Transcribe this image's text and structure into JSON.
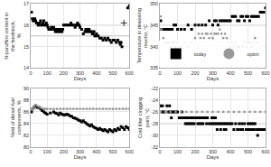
{
  "chart_data": [
    {
      "type": "scatter",
      "xlabel": "Days",
      "ylabel": "N-paraffins content in the feedstock,\n%",
      "xlim": [
        0,
        600
      ],
      "ylim": [
        14,
        17
      ],
      "xticks": [
        0,
        100,
        200,
        300,
        400,
        500,
        600
      ],
      "yticks": [
        14,
        15,
        16,
        17
      ],
      "grid": true,
      "series": [
        {
          "color": "#000000",
          "marker": "square",
          "x": [
            5,
            10,
            15,
            20,
            25,
            30,
            35,
            40,
            45,
            50,
            55,
            60,
            65,
            70,
            75,
            80,
            85,
            90,
            95,
            100,
            105,
            110,
            120,
            125,
            130,
            140,
            145,
            150,
            155,
            160,
            165,
            170,
            175,
            180,
            185,
            190,
            195,
            200,
            210,
            220,
            230,
            240,
            245,
            250,
            260,
            270,
            275,
            280,
            285,
            290,
            295,
            300,
            310,
            320,
            330,
            335,
            340,
            345,
            350,
            355,
            360,
            370,
            375,
            380,
            385,
            390,
            395,
            400,
            410,
            420,
            430,
            440,
            450,
            460,
            470,
            480,
            490,
            500,
            510,
            520,
            530,
            540,
            545,
            550,
            555,
            590,
            600
          ],
          "values": [
            16.6,
            16.3,
            16.2,
            16.2,
            16.3,
            16.2,
            16.1,
            16.1,
            16.0,
            16.0,
            16.1,
            16.2,
            16.0,
            16.0,
            16.1,
            16.2,
            16.0,
            16.0,
            16.1,
            16.0,
            15.9,
            15.8,
            15.8,
            15.9,
            15.8,
            15.9,
            15.8,
            15.7,
            15.8,
            15.7,
            15.8,
            15.7,
            15.8,
            15.7,
            15.8,
            15.7,
            15.8,
            16.0,
            16.0,
            16.0,
            16.0,
            16.0,
            16.1,
            16.0,
            16.0,
            15.9,
            16.0,
            16.0,
            16.1,
            16.0,
            16.0,
            15.9,
            15.8,
            15.6,
            15.7,
            15.8,
            15.7,
            15.8,
            15.7,
            15.8,
            15.7,
            15.7,
            15.6,
            15.6,
            15.7,
            15.5,
            15.5,
            15.6,
            15.5,
            15.4,
            15.4,
            15.3,
            15.4,
            15.3,
            15.4,
            15.3,
            15.2,
            15.3,
            15.3,
            15.2,
            15.3,
            15.2,
            15.1,
            15.2,
            15.0,
            16.8,
            16.9
          ]
        },
        {
          "color": "#000000",
          "marker": "plus",
          "x": [
            567
          ],
          "values": [
            16.1
          ]
        }
      ],
      "hlines": [
        {
          "y": 16.0,
          "color": "#aaaaaa"
        },
        {
          "y": 15.5,
          "color": "#aaaaaa"
        }
      ]
    },
    {
      "type": "scatter",
      "xlabel": "Days",
      "ylabel": "Temperature in dewaxing reactor, °C",
      "xlim": [
        0,
        600
      ],
      "ylim": [
        335,
        350
      ],
      "xticks": [
        0,
        100,
        200,
        300,
        400,
        500,
        600
      ],
      "yticks": [
        335,
        340,
        345,
        350
      ],
      "grid": true,
      "legend": "lower right",
      "series": [
        {
          "name": "today",
          "color": "#000000",
          "marker": "square",
          "x": [
            5,
            10,
            20,
            30,
            40,
            50,
            60,
            70,
            80,
            90,
            100,
            120,
            140,
            160,
            180,
            200,
            220,
            240,
            260,
            280,
            300,
            310,
            320,
            330,
            340,
            350,
            360,
            370,
            380,
            390,
            400,
            410,
            420,
            430,
            440,
            450,
            460,
            470,
            480,
            490,
            500,
            510,
            520,
            530,
            540,
            550,
            560,
            570,
            580,
            590,
            600
          ],
          "values": [
            346,
            344,
            344,
            344,
            344,
            344,
            344,
            344,
            345,
            345,
            344,
            344,
            344,
            345,
            344,
            345,
            345,
            345,
            345,
            346,
            345,
            346,
            346,
            345,
            346,
            346,
            346,
            346,
            346,
            346,
            346,
            347,
            347,
            347,
            346,
            346,
            347,
            347,
            346,
            347,
            347,
            346,
            347,
            347,
            347,
            347,
            347,
            348,
            348,
            348,
            349
          ]
        },
        {
          "name": "optim",
          "color": "#999999",
          "marker": "circle",
          "x": [
            5,
            10,
            20,
            30,
            40,
            50,
            60,
            70,
            80,
            90,
            100,
            120,
            140,
            160,
            180,
            200,
            220,
            230,
            240,
            250,
            260,
            270,
            280,
            290,
            300,
            310,
            320,
            330,
            340,
            350,
            360,
            370,
            380,
            390,
            400,
            410,
            420,
            430,
            440,
            450,
            460,
            470,
            480,
            490,
            500,
            510,
            520,
            530,
            540,
            550
          ],
          "values": [
            347,
            344,
            342,
            341,
            341,
            341,
            340,
            341,
            341,
            340,
            341,
            340,
            341,
            340,
            341,
            342,
            343,
            342,
            343,
            342,
            343,
            343,
            342,
            343,
            342,
            343,
            343,
            343,
            344,
            343,
            342,
            343,
            342,
            341,
            340,
            341,
            340,
            341,
            340,
            340,
            339,
            340,
            341,
            340,
            341,
            341,
            340,
            341,
            342,
            341
          ]
        }
      ],
      "hlines": [
        {
          "y": 345,
          "color": "#aaaaaa"
        }
      ]
    },
    {
      "type": "scatter",
      "xlabel": "Days",
      "ylabel": "Yield of diesel fuel components, %",
      "xlim": [
        0,
        600
      ],
      "ylim": [
        80,
        90
      ],
      "xticks": [
        0,
        100,
        200,
        300,
        400,
        500,
        600
      ],
      "yticks": [
        80,
        82,
        84,
        86,
        88,
        90
      ],
      "grid": true,
      "series": [
        {
          "color": "#000000",
          "marker": "square",
          "x": [
            5,
            10,
            20,
            30,
            40,
            50,
            60,
            70,
            80,
            90,
            100,
            120,
            140,
            150,
            160,
            170,
            180,
            190,
            200,
            210,
            220,
            230,
            240,
            250,
            260,
            270,
            280,
            290,
            300,
            310,
            320,
            330,
            340,
            350,
            360,
            370,
            380,
            390,
            400,
            410,
            420,
            430,
            440,
            450,
            460,
            470,
            480,
            490,
            500,
            510,
            520,
            530,
            540,
            550,
            560,
            570,
            580,
            590,
            600
          ],
          "values": [
            86.0,
            86.5,
            86.8,
            87.0,
            86.8,
            86.8,
            86.5,
            86.2,
            86.0,
            85.8,
            85.6,
            85.8,
            86.0,
            85.8,
            85.7,
            85.5,
            85.8,
            85.6,
            85.5,
            85.5,
            85.6,
            85.5,
            85.3,
            85.2,
            85.0,
            84.9,
            84.8,
            84.6,
            84.5,
            84.3,
            84.5,
            84.2,
            84.0,
            83.8,
            83.6,
            83.8,
            83.5,
            83.3,
            83.2,
            83.0,
            83.2,
            83.0,
            82.8,
            83.0,
            82.8,
            82.6,
            83.0,
            82.8,
            82.6,
            83.0,
            82.8,
            83.2,
            83.0,
            83.5,
            83.3,
            83.0,
            83.5,
            83.3,
            83.0
          ]
        },
        {
          "color": "#999999",
          "marker": "circle",
          "x": [
            5,
            10,
            20,
            30,
            40,
            50,
            60,
            70,
            80,
            90,
            100,
            120,
            140,
            160,
            180,
            200,
            220,
            240,
            260,
            280,
            300,
            320,
            340,
            360,
            380,
            400,
            420,
            440,
            460,
            480,
            500,
            520,
            540,
            560,
            580,
            600
          ],
          "values": [
            86.5,
            86.5,
            86.8,
            87.2,
            87.0,
            86.9,
            86.7,
            86.6,
            86.5,
            86.5,
            86.5,
            86.5,
            86.5,
            86.5,
            86.5,
            86.5,
            86.5,
            86.5,
            86.5,
            86.5,
            86.5,
            86.5,
            86.5,
            86.5,
            86.5,
            86.5,
            86.5,
            86.5,
            86.5,
            86.5,
            86.5,
            86.5,
            86.5,
            86.5,
            86.5,
            86.5
          ]
        }
      ],
      "hlines": [
        {
          "y": 86.5,
          "color": "#aaaaaa"
        }
      ]
    },
    {
      "type": "scatter",
      "xlabel": "Days",
      "ylabel": "Cold filter clogging point, °C",
      "xlim": [
        0,
        600
      ],
      "ylim": [
        -32,
        -22
      ],
      "xticks": [
        0,
        100,
        200,
        300,
        400,
        500,
        600
      ],
      "yticks": [
        -32,
        -30,
        -28,
        -26,
        -24,
        -22
      ],
      "grid": true,
      "series": [
        {
          "color": "#000000",
          "marker": "square",
          "x": [
            5,
            10,
            15,
            20,
            30,
            40,
            50,
            55,
            60,
            65,
            70,
            80,
            90,
            100,
            110,
            115,
            120,
            125,
            130,
            140,
            145,
            150,
            155,
            160,
            165,
            170,
            175,
            180,
            185,
            190,
            195,
            200,
            210,
            215,
            220,
            225,
            230,
            235,
            240,
            245,
            250,
            260,
            265,
            270,
            280,
            290,
            295,
            300,
            305,
            310,
            315,
            320,
            325,
            330,
            340,
            345,
            350,
            360,
            365,
            370,
            375,
            380,
            390,
            400,
            410,
            420,
            430,
            440,
            445,
            450,
            460,
            465,
            470,
            480,
            490,
            500,
            505,
            510,
            515,
            520,
            525,
            530,
            535,
            540,
            550,
            555,
            560,
            570,
            580,
            590,
            600
          ],
          "values": [
            -25,
            -26,
            -25,
            -26,
            -26,
            -25,
            -26,
            -25,
            -26,
            -27,
            -26,
            -26,
            -26,
            -26,
            -27,
            -27,
            -27,
            -26,
            -27,
            -27,
            -28,
            -27,
            -28,
            -27,
            -28,
            -27,
            -28,
            -27,
            -28,
            -27,
            -28,
            -27,
            -27,
            -28,
            -27,
            -28,
            -27,
            -28,
            -27,
            -28,
            -27,
            -27,
            -28,
            -27,
            -28,
            -28,
            -27,
            -28,
            -27,
            -28,
            -27,
            -28,
            -29,
            -28,
            -28,
            -29,
            -28,
            -28,
            -29,
            -28,
            -29,
            -28,
            -28,
            -28,
            -28,
            -29,
            -28,
            -29,
            -29,
            -28,
            -29,
            -28,
            -29,
            -28,
            -29,
            -28,
            -29,
            -28,
            -29,
            -28,
            -29,
            -28,
            -29,
            -28,
            -29,
            -30,
            -29,
            -29,
            -29,
            -29,
            -29
          ]
        },
        {
          "color": "#999999",
          "marker": "circle",
          "x": [
            5,
            30,
            60,
            90,
            120,
            150,
            180,
            210,
            240,
            270,
            300,
            330,
            360,
            390,
            420,
            450,
            480,
            510,
            540,
            570,
            600
          ],
          "values": [
            -26,
            -26,
            -26,
            -26,
            -26,
            -26,
            -26,
            -26,
            -26,
            -26,
            -26,
            -26,
            -26,
            -26,
            -26,
            -26,
            -26,
            -26,
            -26,
            -26,
            -26
          ]
        }
      ],
      "hlines": [
        {
          "y": -26,
          "color": "#aaaaaa"
        },
        {
          "y": -28,
          "color": "#aaaaaa"
        }
      ]
    }
  ]
}
